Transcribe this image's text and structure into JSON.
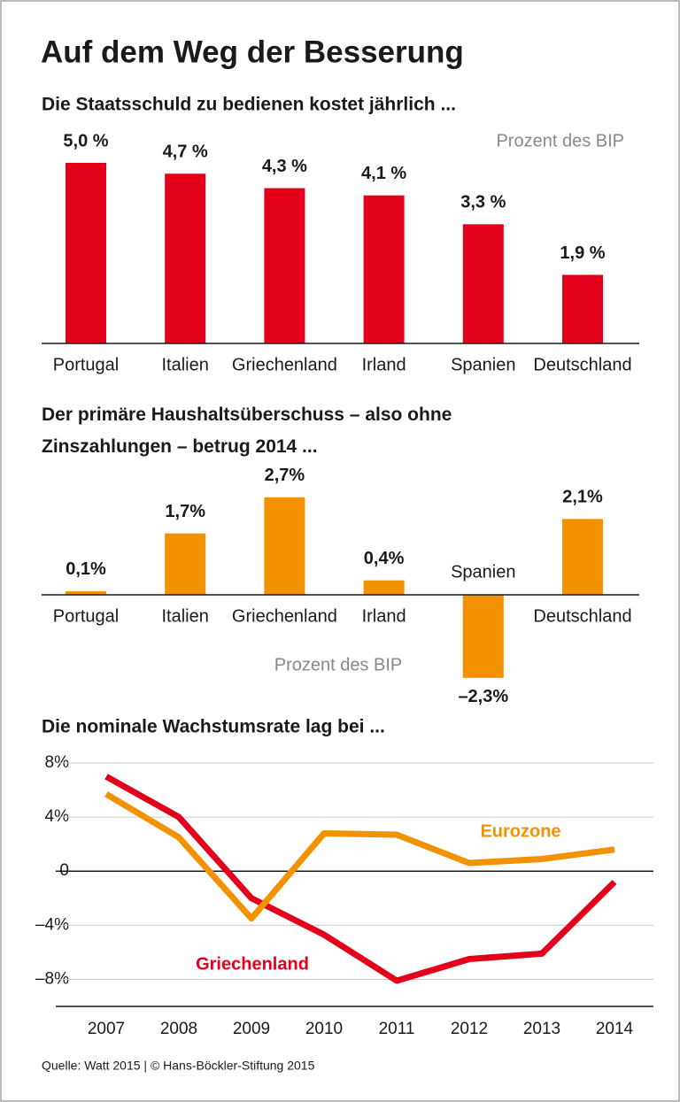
{
  "title": "Auf dem Weg der Besserung",
  "source": "Quelle: Watt 2015 | © Hans-Böckler-Stiftung 2015",
  "chart_data": [
    {
      "type": "bar",
      "title": "Die Staatsschuld zu bedienen kostet jährlich ...",
      "unit_label": "Prozent des BIP",
      "categories": [
        "Portugal",
        "Italien",
        "Griechenland",
        "Irland",
        "Spanien",
        "Deutschland"
      ],
      "values": [
        5.0,
        4.7,
        4.3,
        4.1,
        3.3,
        1.9
      ],
      "value_labels": [
        "5,0 %",
        "4,7 %",
        "4,3 %",
        "4,1 %",
        "3,3 %",
        "1,9 %"
      ],
      "color": "#e2001a"
    },
    {
      "type": "bar",
      "title": "Der primäre Haushaltsüberschuss – also ohne Zinszahlungen – betrug 2014 ...",
      "unit_label": "Prozent des BIP",
      "categories": [
        "Portugal",
        "Italien",
        "Griechenland",
        "Irland",
        "Spanien",
        "Deutschland"
      ],
      "values": [
        0.1,
        1.7,
        2.7,
        0.4,
        -2.3,
        2.1
      ],
      "value_labels": [
        "0,1%",
        "1,7%",
        "2,7%",
        "0,4%",
        "–2,3%",
        "2,1%"
      ],
      "color": "#f39200"
    },
    {
      "type": "line",
      "title": "Die nominale Wachstumsrate lag bei ...",
      "categories": [
        "2007",
        "2008",
        "2009",
        "2010",
        "2011",
        "2012",
        "2013",
        "2014"
      ],
      "series": [
        {
          "name": "Griechenland",
          "color": "#e2001a",
          "values": [
            7.0,
            4.0,
            -2.0,
            -4.7,
            -8.1,
            -6.5,
            -6.1,
            -0.8
          ]
        },
        {
          "name": "Eurozone",
          "color": "#f39200",
          "values": [
            5.7,
            2.5,
            -3.5,
            2.8,
            2.7,
            0.6,
            0.9,
            1.6
          ]
        }
      ],
      "ylim": [
        -10,
        8
      ],
      "yticks": [
        {
          "value": 8,
          "label": "8%"
        },
        {
          "value": 4,
          "label": "4%"
        },
        0,
        {
          "value": -4,
          "label": "–4%"
        },
        {
          "value": -8,
          "label": "–8%"
        }
      ],
      "grid": true
    }
  ]
}
